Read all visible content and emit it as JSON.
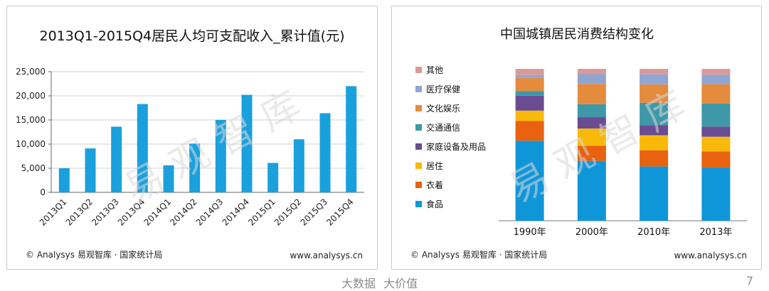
{
  "footer": {
    "tagline": "大数据  大价值",
    "page_number": "7"
  },
  "left_chart": {
    "source": "© Analysys 易观智库 · 国家统计局",
    "url": "www.analysys.cn",
    "watermark": "易观智库"
  },
  "right_chart": {
    "source": "© Analysys 易观智库 · 国家统计局",
    "url": "www.analysys.cn",
    "watermark": "易观智库"
  },
  "chart_data": [
    {
      "type": "bar",
      "title": "2013Q1-2015Q4居民人均可支配收入_累计值(元)",
      "categories": [
        "2013Q1",
        "2013Q2",
        "2013Q3",
        "2013Q4",
        "2014Q1",
        "2014Q2",
        "2014Q3",
        "2014Q4",
        "2015Q1",
        "2015Q2",
        "2015Q3",
        "2015Q4"
      ],
      "values": [
        5000,
        9100,
        13600,
        18300,
        5600,
        10100,
        15000,
        20200,
        6100,
        11000,
        16400,
        22000
      ],
      "ylim": [
        0,
        25000
      ],
      "yticks": [
        "0",
        "5,000",
        "10,000",
        "15,000",
        "20,000",
        "25,000"
      ],
      "color": "#1aa0dc",
      "grid": true
    },
    {
      "type": "bar",
      "stacked": true,
      "percent": true,
      "title": "中国城镇居民消费结构变化",
      "categories": [
        "1990年",
        "2000年",
        "2010年",
        "2013年"
      ],
      "legend_position": "left",
      "series": [
        {
          "name": "食品",
          "color": "#0f96d8",
          "values": [
            54.2,
            39.4,
            35.7,
            35.0
          ]
        },
        {
          "name": "衣着",
          "color": "#e8620f",
          "values": [
            13.4,
            10.0,
            10.7,
            10.6
          ]
        },
        {
          "name": "居住",
          "color": "#f8b90b",
          "values": [
            7.0,
            11.3,
            9.9,
            9.7
          ]
        },
        {
          "name": "家庭设备及用品",
          "color": "#6a4c93",
          "values": [
            10.1,
            7.5,
            6.7,
            6.7
          ]
        },
        {
          "name": "交通通信",
          "color": "#3f98a8",
          "values": [
            3.2,
            8.5,
            14.7,
            15.2
          ]
        },
        {
          "name": "文化娱乐",
          "color": "#e48b3e",
          "values": [
            8.8,
            13.4,
            12.1,
            12.7
          ]
        },
        {
          "name": "医疗保健",
          "color": "#8fa6d4",
          "values": [
            2.0,
            6.4,
            6.5,
            6.2
          ]
        },
        {
          "name": "其他",
          "color": "#d99a9a",
          "values": [
            4.2,
            3.5,
            3.7,
            3.9
          ]
        }
      ]
    }
  ]
}
